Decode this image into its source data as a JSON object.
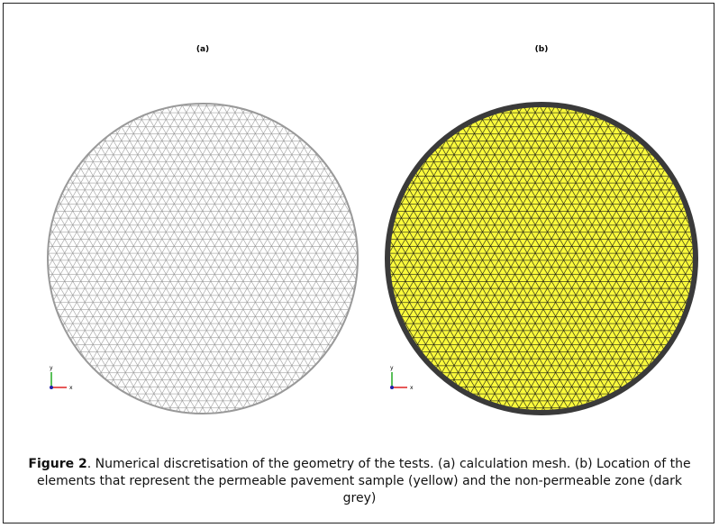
{
  "figure": {
    "panels": [
      {
        "label": "(a)",
        "axis_y": "y",
        "axis_x": "x"
      },
      {
        "label": "(b)",
        "axis_y": "y",
        "axis_x": "x"
      }
    ],
    "caption": {
      "label": "Figure 2",
      "text": ". Numerical discretisation of the geometry of the tests. (a) calculation mesh. (b) Location of the elements that represent the permeable pavement sample (yellow) and the non-permeable zone (dark grey)"
    }
  }
}
